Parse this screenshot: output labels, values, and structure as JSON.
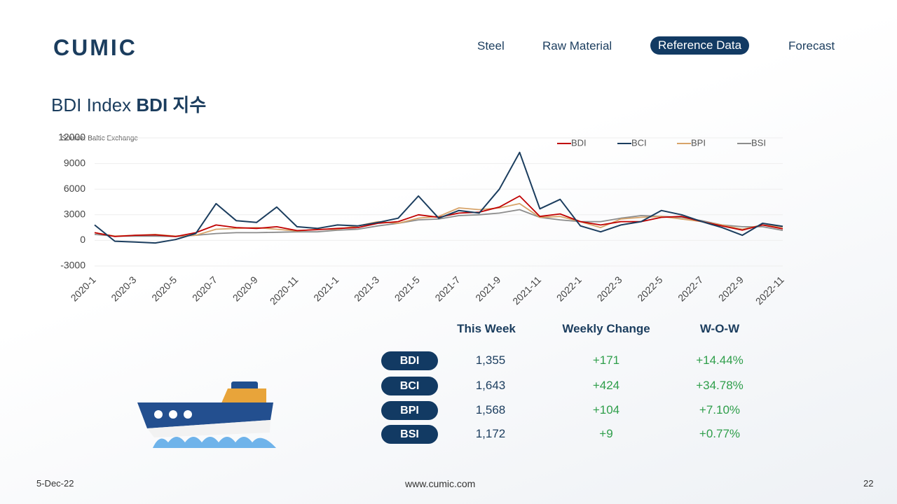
{
  "logo": "CUMIC",
  "nav": [
    "Steel",
    "Raw Material",
    "Reference Data",
    "Forecast"
  ],
  "heading": {
    "light": "BDI Index",
    "bold": "BDI 지수"
  },
  "chart_data": {
    "type": "line",
    "source": "Source: Baltic Exchange",
    "categories": [
      "2020-1",
      null,
      "2020-3",
      null,
      "2020-5",
      null,
      "2020-7",
      null,
      "2020-9",
      null,
      "2020-11",
      null,
      "2021-1",
      null,
      "2021-3",
      null,
      "2021-5",
      null,
      "2021-7",
      null,
      "2021-9",
      null,
      "2021-11",
      null,
      "2022-1",
      null,
      "2022-3",
      null,
      "2022-5",
      null,
      "2022-7",
      null,
      "2022-9",
      null,
      "2022-11"
    ],
    "series": [
      {
        "name": "BDI",
        "color": "#c00000",
        "values": [
          900,
          450,
          600,
          650,
          450,
          900,
          1800,
          1500,
          1400,
          1600,
          1150,
          1250,
          1400,
          1500,
          2000,
          2200,
          3000,
          2700,
          3200,
          3300,
          3900,
          5200,
          2800,
          3100,
          2200,
          1800,
          2200,
          2200,
          2700,
          2800,
          2200,
          1700,
          1200,
          1800,
          1355
        ]
      },
      {
        "name": "BCI",
        "color": "#1b3d5e",
        "values": [
          1800,
          -100,
          -200,
          -300,
          100,
          800,
          4300,
          2300,
          2100,
          3900,
          1600,
          1400,
          1800,
          1700,
          2100,
          2600,
          5200,
          2600,
          3500,
          3200,
          6000,
          10300,
          3700,
          4800,
          1700,
          1000,
          1800,
          2200,
          3500,
          3000,
          2200,
          1500,
          600,
          2000,
          1643
        ]
      },
      {
        "name": "BPI",
        "color": "#d7a46a",
        "values": [
          900,
          500,
          600,
          700,
          500,
          600,
          1300,
          1400,
          1500,
          1300,
          1100,
          1300,
          1300,
          1700,
          2200,
          2000,
          2600,
          2800,
          3800,
          3600,
          3800,
          4300,
          2700,
          2800,
          2200,
          1500,
          2500,
          2700,
          2800,
          2500,
          2200,
          1800,
          1300,
          1800,
          1568
        ]
      },
      {
        "name": "BSI",
        "color": "#8c8c8c",
        "values": [
          700,
          500,
          500,
          500,
          450,
          600,
          800,
          900,
          900,
          950,
          1000,
          1000,
          1200,
          1300,
          1700,
          2000,
          2400,
          2500,
          2900,
          3000,
          3200,
          3600,
          2700,
          2400,
          2200,
          2200,
          2600,
          2900,
          2800,
          2700,
          2300,
          1800,
          1600,
          1600,
          1172
        ]
      }
    ],
    "ylim": [
      -3000,
      12000
    ],
    "yticks": [
      -3000,
      0,
      3000,
      6000,
      9000,
      12000
    ],
    "grid": true,
    "legend": "top-right"
  },
  "table": {
    "header": [
      "This Week",
      "Weekly Change",
      "W-O-W"
    ],
    "rows": [
      [
        "BDI",
        "1,355",
        "+171",
        "+14.44%"
      ],
      [
        "BCI",
        "1,643",
        "+424",
        "+34.78%"
      ],
      [
        "BPI",
        "1,568",
        "+104",
        "+7.10%"
      ],
      [
        "BSI",
        "1,172",
        "+9",
        "+0.77%"
      ]
    ]
  },
  "footer": {
    "date": "5-Dec-22",
    "site": "www.cumic.com",
    "page": "22"
  }
}
